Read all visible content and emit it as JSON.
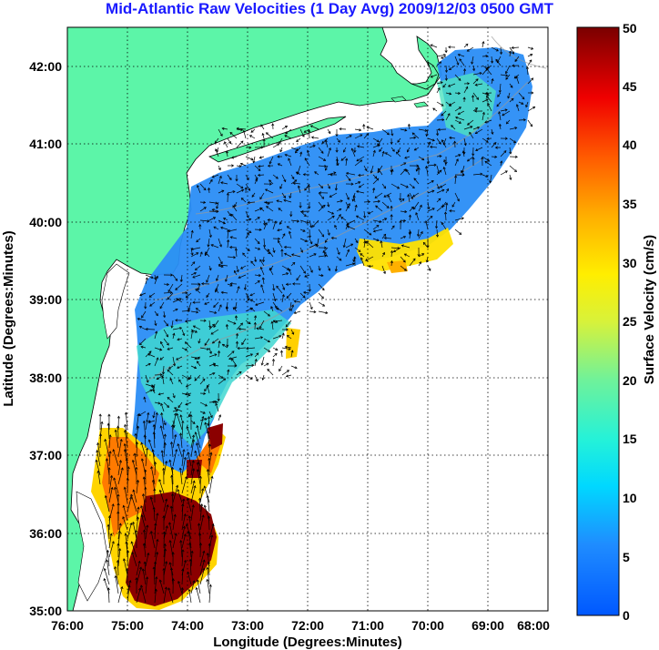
{
  "title": "Mid-Atlantic Raw Velocities (1 Day Avg) 2009/12/03 0500 GMT",
  "xlabel": "Longitude (Degrees:Minutes)",
  "ylabel": "Latitude (Degrees:Minutes)",
  "colorbar_label": "Surface Velocity (cm/s)",
  "x_ticks": [
    "76:00",
    "75:00",
    "74:00",
    "73:00",
    "72:00",
    "71:00",
    "70:00",
    "69:00",
    "68:00"
  ],
  "y_ticks": [
    "35:00",
    "36:00",
    "37:00",
    "38:00",
    "39:00",
    "40:00",
    "41:00",
    "42:00"
  ],
  "colorbar_ticks": [
    "0",
    "5",
    "10",
    "15",
    "20",
    "25",
    "30",
    "35",
    "40",
    "45",
    "50"
  ],
  "chart_data": {
    "type": "heatmap",
    "title": "Mid-Atlantic Raw Velocities (1 Day Avg) 2009/12/03 0500 GMT",
    "xlabel": "Longitude (Degrees:Minutes)",
    "ylabel": "Latitude (Degrees:Minutes)",
    "xlim": [
      -76,
      -68
    ],
    "ylim": [
      35,
      42.5
    ],
    "colorbar_range": [
      0,
      50
    ],
    "colorbar_label": "Surface Velocity (cm/s)",
    "grid": true,
    "colors": {
      "land": "#5cf5a8",
      "low": "#1e7bff",
      "mid": "#3fd7d0",
      "high": "#8b0000"
    }
  }
}
